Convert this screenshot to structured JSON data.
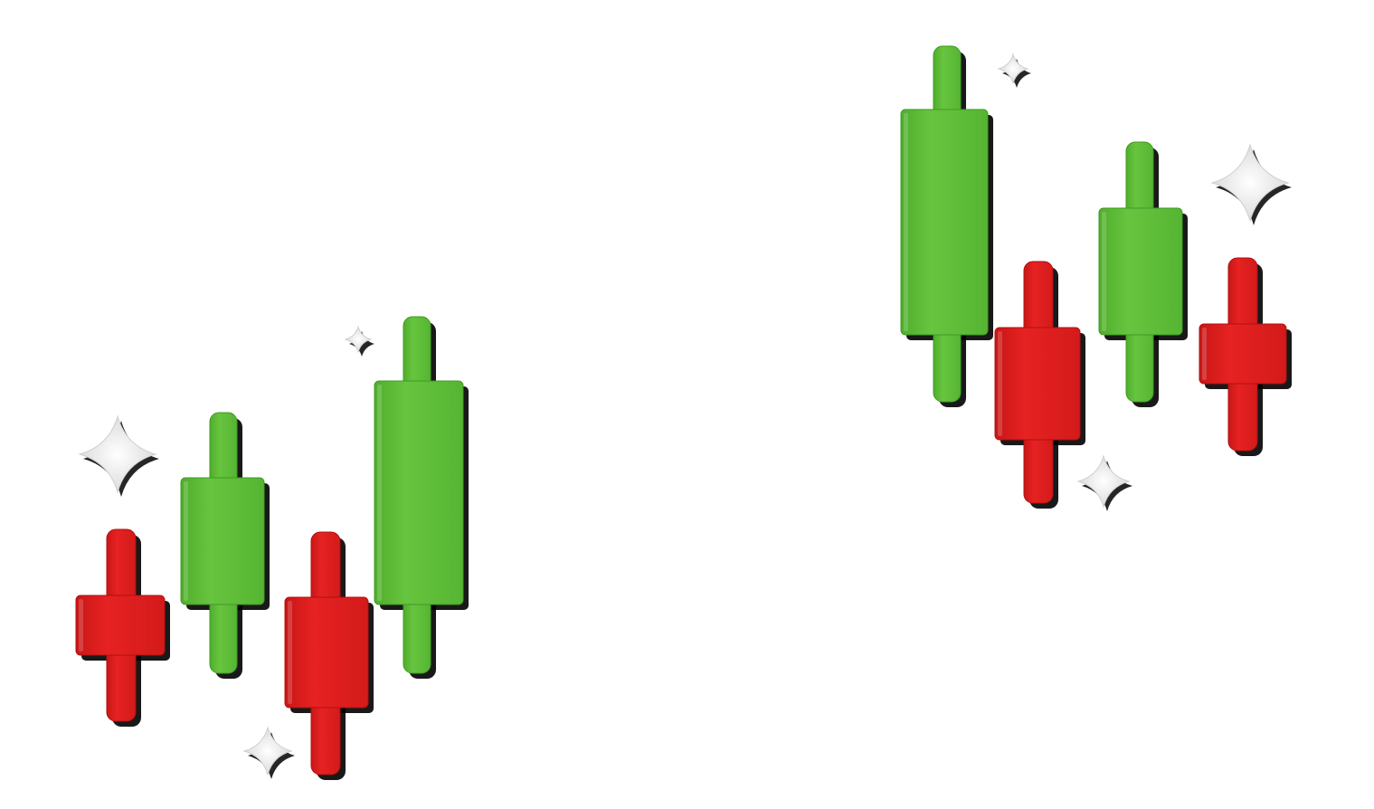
{
  "colors": {
    "bullish_candle": "#5fbf3a",
    "bearish_candle": "#e01f1f",
    "sparkle": "#f4f4f4",
    "background": "#ffffff"
  },
  "groups": [
    {
      "name": "left-candlestick-group",
      "candles": [
        {
          "direction": "bearish"
        },
        {
          "direction": "bullish"
        },
        {
          "direction": "bearish"
        },
        {
          "direction": "bullish"
        }
      ],
      "sparkles": [
        "sparkle-icon",
        "sparkle-icon",
        "sparkle-icon"
      ]
    },
    {
      "name": "right-candlestick-group",
      "candles": [
        {
          "direction": "bullish"
        },
        {
          "direction": "bearish"
        },
        {
          "direction": "bullish"
        },
        {
          "direction": "bearish"
        }
      ],
      "sparkles": [
        "sparkle-icon",
        "sparkle-icon",
        "sparkle-icon"
      ]
    }
  ],
  "faint_text": ""
}
